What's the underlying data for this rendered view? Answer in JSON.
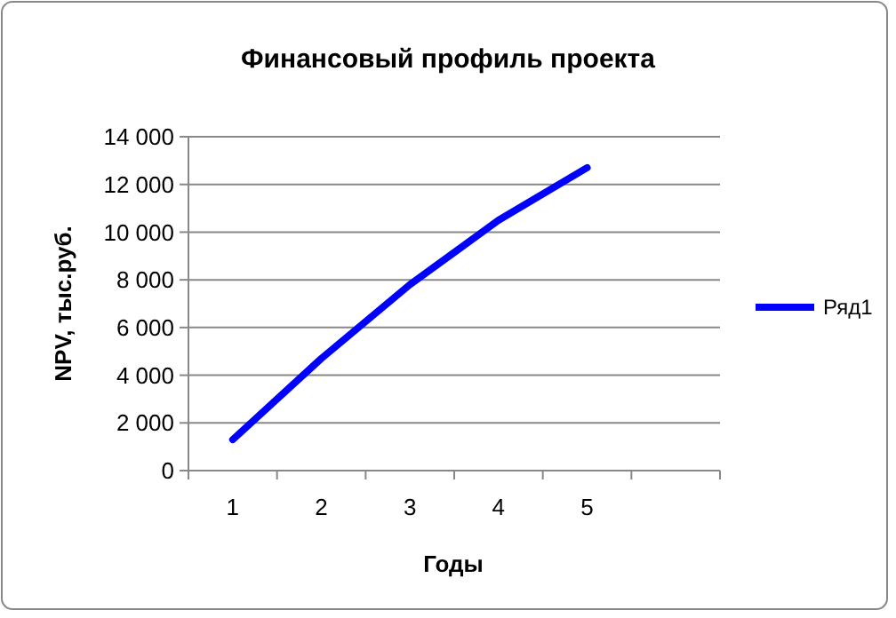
{
  "chart_data": {
    "type": "line",
    "title": "Финансовый профиль проекта",
    "xlabel": "Годы",
    "ylabel": "NPV, тыс.руб.",
    "categories": [
      "1",
      "2",
      "3",
      "4",
      "5",
      null
    ],
    "series": [
      {
        "name": "Ряд1",
        "color": "#0000ff",
        "values": [
          1300,
          4700,
          7800,
          10500,
          12700,
          null
        ]
      }
    ],
    "ylim": [
      0,
      14000
    ],
    "yticks": [
      {
        "value": 0,
        "label": "0"
      },
      {
        "value": 2000,
        "label": "2 000"
      },
      {
        "value": 4000,
        "label": "4 000"
      },
      {
        "value": 6000,
        "label": "6 000"
      },
      {
        "value": 8000,
        "label": "8 000"
      },
      {
        "value": 10000,
        "label": "10 000"
      },
      {
        "value": 12000,
        "label": "12 000"
      },
      {
        "value": 14000,
        "label": "14 000"
      }
    ],
    "grid": "y",
    "legend": "right",
    "marker": "none",
    "line_style": "solid"
  }
}
